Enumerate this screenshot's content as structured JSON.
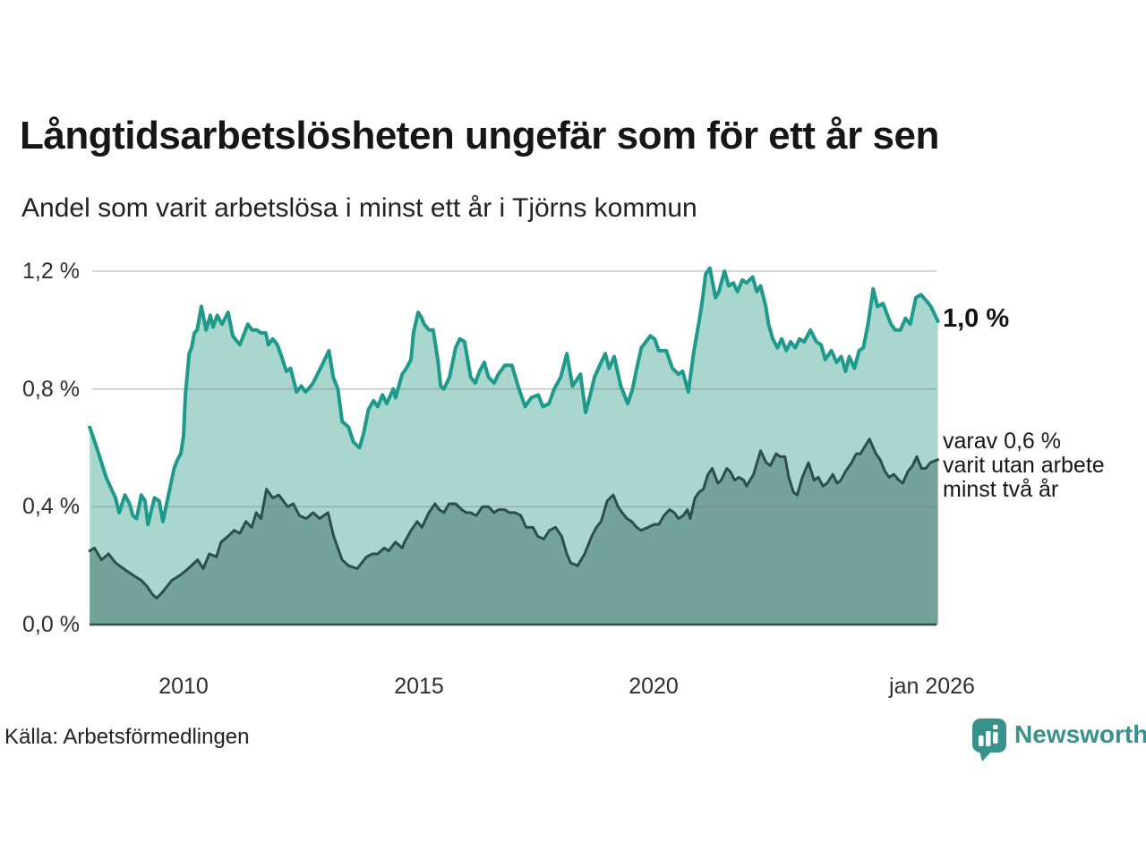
{
  "header": {
    "title": "Långtidsarbetslösheten ungefär som för ett år sen",
    "subtitle": "Andel som varit arbetslösa i minst ett år i Tjörns kommun"
  },
  "footer": {
    "source": "Källa: Arbetsförmedlingen",
    "brand": "Newsworthy",
    "brand_color": "#38918a"
  },
  "colors": {
    "line_1yr": "#1d9a8b",
    "fill_1yr": "#a9d7ce",
    "line_2yr": "#2e4f48",
    "fill_2yr": "#74a39a",
    "gridline": "#cccccc",
    "text": "#1a1a1a"
  },
  "chart_data": {
    "type": "area",
    "title": "Långtidsarbetslösheten ungefär som för ett år sen",
    "subtitle": "Andel som varit arbetslösa i minst ett år i Tjörns kommun",
    "x_unit": "decimal_year",
    "ylim": [
      0,
      1.2
    ],
    "xlim": [
      2008.0,
      2026.1
    ],
    "grid": true,
    "yticks": [
      {
        "value": 1.2,
        "label": "1,2 %"
      },
      {
        "value": 0.8,
        "label": "0,8 %"
      },
      {
        "value": 0.4,
        "label": "0,4 %"
      },
      {
        "value": 0.0,
        "label": "0,0 %"
      }
    ],
    "xticks": [
      {
        "year": 2010,
        "label": "2010"
      },
      {
        "year": 2015,
        "label": "2015"
      },
      {
        "year": 2020,
        "label": "2020"
      },
      {
        "year": 2026.0,
        "label": "jan 2026"
      }
    ],
    "end_labels": {
      "primary": "1,0 %",
      "secondary_lines": [
        "varav 0,6 %",
        "varit utan arbete",
        "minst två år"
      ]
    },
    "series": [
      {
        "id": "1yr",
        "name": "Andel arbetslösa minst ett år",
        "color": "#1d9a8b",
        "fill": "#a9d7ce",
        "last_value_label": "1,0 %",
        "x": [
          2008.0,
          2008.15,
          2008.35,
          2008.55,
          2008.63,
          2008.75,
          2008.85,
          2008.92,
          2009.0,
          2009.1,
          2009.18,
          2009.24,
          2009.38,
          2009.48,
          2009.56,
          2009.68,
          2009.8,
          2009.87,
          2009.94,
          2010.0,
          2010.04,
          2010.08,
          2010.12,
          2010.17,
          2010.23,
          2010.29,
          2010.38,
          2010.48,
          2010.57,
          2010.63,
          2010.72,
          2010.82,
          2010.95,
          2011.05,
          2011.2,
          2011.37,
          2011.46,
          2011.56,
          2011.65,
          2011.75,
          2011.81,
          2011.9,
          2012.0,
          2012.09,
          2012.19,
          2012.28,
          2012.41,
          2012.51,
          2012.6,
          2012.66,
          2012.76,
          2012.95,
          2013.1,
          2013.19,
          2013.29,
          2013.38,
          2013.52,
          2013.62,
          2013.75,
          2013.84,
          2013.94,
          2014.05,
          2014.14,
          2014.24,
          2014.33,
          2014.47,
          2014.52,
          2014.66,
          2014.75,
          2014.85,
          2014.9,
          2015.0,
          2015.08,
          2015.13,
          2015.23,
          2015.32,
          2015.42,
          2015.48,
          2015.55,
          2015.67,
          2015.8,
          2015.89,
          2015.99,
          2016.12,
          2016.22,
          2016.31,
          2016.41,
          2016.5,
          2016.62,
          2016.71,
          2016.85,
          2017.0,
          2017.13,
          2017.28,
          2017.41,
          2017.56,
          2017.66,
          2017.79,
          2017.9,
          2018.04,
          2018.17,
          2018.29,
          2018.46,
          2018.57,
          2018.67,
          2018.76,
          2018.9,
          2018.99,
          2019.07,
          2019.18,
          2019.32,
          2019.47,
          2019.57,
          2019.66,
          2019.76,
          2019.95,
          2020.04,
          2020.13,
          2020.29,
          2020.42,
          2020.55,
          2020.64,
          2020.76,
          2020.87,
          2021.0,
          2021.05,
          2021.13,
          2021.22,
          2021.34,
          2021.41,
          2021.53,
          2021.62,
          2021.72,
          2021.81,
          2021.91,
          2022.0,
          2022.13,
          2022.22,
          2022.3,
          2022.41,
          2022.47,
          2022.56,
          2022.66,
          2022.75,
          2022.85,
          2022.94,
          2023.04,
          2023.13,
          2023.23,
          2023.36,
          2023.49,
          2023.59,
          2023.68,
          2023.81,
          2023.92,
          2024.02,
          2024.11,
          2024.19,
          2024.3,
          2024.4,
          2024.49,
          2024.59,
          2024.7,
          2024.79,
          2024.91,
          2024.98,
          2025.08,
          2025.17,
          2025.28,
          2025.39,
          2025.49,
          2025.61,
          2025.72,
          2025.83,
          2025.93,
          2026.08
        ],
        "values": [
          0.67,
          0.6,
          0.5,
          0.43,
          0.38,
          0.44,
          0.41,
          0.37,
          0.36,
          0.44,
          0.42,
          0.34,
          0.43,
          0.42,
          0.35,
          0.44,
          0.53,
          0.56,
          0.58,
          0.64,
          0.78,
          0.85,
          0.92,
          0.94,
          0.99,
          1.0,
          1.08,
          1.0,
          1.05,
          1.01,
          1.05,
          1.02,
          1.06,
          0.98,
          0.95,
          1.02,
          1.0,
          1.0,
          0.99,
          0.99,
          0.95,
          0.97,
          0.95,
          0.91,
          0.86,
          0.87,
          0.79,
          0.81,
          0.79,
          0.8,
          0.82,
          0.88,
          0.93,
          0.84,
          0.8,
          0.69,
          0.67,
          0.62,
          0.6,
          0.65,
          0.73,
          0.76,
          0.74,
          0.78,
          0.75,
          0.8,
          0.77,
          0.85,
          0.87,
          0.9,
          0.99,
          1.06,
          1.04,
          1.02,
          1.0,
          1.0,
          0.9,
          0.81,
          0.8,
          0.84,
          0.94,
          0.97,
          0.96,
          0.84,
          0.82,
          0.86,
          0.89,
          0.84,
          0.82,
          0.85,
          0.88,
          0.88,
          0.81,
          0.74,
          0.77,
          0.78,
          0.74,
          0.75,
          0.8,
          0.84,
          0.92,
          0.81,
          0.85,
          0.72,
          0.78,
          0.84,
          0.89,
          0.92,
          0.87,
          0.91,
          0.81,
          0.75,
          0.8,
          0.87,
          0.94,
          0.98,
          0.97,
          0.93,
          0.93,
          0.87,
          0.85,
          0.86,
          0.79,
          0.92,
          1.04,
          1.09,
          1.19,
          1.21,
          1.11,
          1.13,
          1.2,
          1.15,
          1.16,
          1.13,
          1.17,
          1.16,
          1.18,
          1.13,
          1.15,
          1.08,
          1.02,
          0.97,
          0.94,
          0.97,
          0.93,
          0.96,
          0.94,
          0.97,
          0.96,
          1.0,
          0.96,
          0.95,
          0.9,
          0.93,
          0.89,
          0.91,
          0.86,
          0.91,
          0.87,
          0.93,
          0.94,
          1.02,
          1.14,
          1.08,
          1.09,
          1.06,
          1.02,
          1.0,
          1.0,
          1.04,
          1.02,
          1.11,
          1.12,
          1.1,
          1.08,
          1.03
        ]
      },
      {
        "id": "2yr",
        "name": "Varav utan arbete minst två år",
        "color": "#2e4f48",
        "fill": "#74a39a",
        "last_value_label": "0,6 %",
        "x": [
          2008.0,
          2008.1,
          2008.25,
          2008.4,
          2008.55,
          2008.72,
          2008.9,
          2009.1,
          2009.22,
          2009.35,
          2009.43,
          2009.55,
          2009.75,
          2009.95,
          2010.1,
          2010.3,
          2010.42,
          2010.55,
          2010.7,
          2010.8,
          2010.95,
          2011.08,
          2011.2,
          2011.33,
          2011.45,
          2011.55,
          2011.65,
          2011.77,
          2011.9,
          2012.03,
          2012.22,
          2012.34,
          2012.47,
          2012.62,
          2012.76,
          2012.9,
          2013.08,
          2013.2,
          2013.29,
          2013.38,
          2013.52,
          2013.7,
          2013.9,
          2014.03,
          2014.14,
          2014.28,
          2014.37,
          2014.52,
          2014.66,
          2014.71,
          2014.85,
          2014.98,
          2015.08,
          2015.23,
          2015.36,
          2015.45,
          2015.55,
          2015.66,
          2015.8,
          2015.93,
          2016.03,
          2016.12,
          2016.24,
          2016.37,
          2016.5,
          2016.62,
          2016.71,
          2016.85,
          2016.94,
          2017.07,
          2017.19,
          2017.3,
          2017.45,
          2017.55,
          2017.68,
          2017.8,
          2017.93,
          2018.06,
          2018.17,
          2018.25,
          2018.4,
          2018.55,
          2018.7,
          2018.8,
          2018.9,
          2019.03,
          2019.16,
          2019.26,
          2019.35,
          2019.45,
          2019.55,
          2019.66,
          2019.75,
          2019.9,
          2020.03,
          2020.13,
          2020.24,
          2020.36,
          2020.46,
          2020.55,
          2020.65,
          2020.74,
          2020.8,
          2020.9,
          2020.99,
          2021.08,
          2021.18,
          2021.27,
          2021.39,
          2021.46,
          2021.58,
          2021.65,
          2021.75,
          2021.84,
          2021.94,
          2022.0,
          2022.15,
          2022.3,
          2022.42,
          2022.51,
          2022.63,
          2022.72,
          2022.82,
          2022.9,
          2023.0,
          2023.08,
          2023.19,
          2023.32,
          2023.44,
          2023.53,
          2023.63,
          2023.72,
          2023.84,
          2023.93,
          2024.01,
          2024.11,
          2024.24,
          2024.34,
          2024.43,
          2024.62,
          2024.76,
          2024.85,
          2024.95,
          2025.04,
          2025.14,
          2025.25,
          2025.33,
          2025.44,
          2025.54,
          2025.63,
          2025.73,
          2025.82,
          2025.92,
          2026.08
        ],
        "values": [
          0.25,
          0.26,
          0.22,
          0.24,
          0.21,
          0.19,
          0.17,
          0.15,
          0.13,
          0.1,
          0.09,
          0.11,
          0.15,
          0.17,
          0.19,
          0.22,
          0.19,
          0.24,
          0.23,
          0.28,
          0.3,
          0.32,
          0.31,
          0.35,
          0.33,
          0.38,
          0.36,
          0.46,
          0.43,
          0.44,
          0.4,
          0.41,
          0.37,
          0.36,
          0.38,
          0.36,
          0.38,
          0.3,
          0.26,
          0.22,
          0.2,
          0.19,
          0.23,
          0.24,
          0.24,
          0.26,
          0.25,
          0.28,
          0.26,
          0.28,
          0.32,
          0.35,
          0.33,
          0.38,
          0.41,
          0.39,
          0.38,
          0.41,
          0.41,
          0.39,
          0.38,
          0.38,
          0.37,
          0.4,
          0.4,
          0.38,
          0.39,
          0.39,
          0.38,
          0.38,
          0.37,
          0.33,
          0.33,
          0.3,
          0.29,
          0.32,
          0.33,
          0.3,
          0.24,
          0.21,
          0.2,
          0.24,
          0.3,
          0.33,
          0.35,
          0.42,
          0.44,
          0.4,
          0.38,
          0.36,
          0.35,
          0.33,
          0.32,
          0.33,
          0.34,
          0.34,
          0.37,
          0.39,
          0.38,
          0.36,
          0.37,
          0.39,
          0.36,
          0.43,
          0.45,
          0.46,
          0.51,
          0.53,
          0.48,
          0.49,
          0.53,
          0.52,
          0.49,
          0.5,
          0.49,
          0.47,
          0.51,
          0.59,
          0.55,
          0.54,
          0.58,
          0.57,
          0.57,
          0.5,
          0.45,
          0.44,
          0.5,
          0.55,
          0.49,
          0.5,
          0.47,
          0.48,
          0.51,
          0.48,
          0.49,
          0.52,
          0.55,
          0.58,
          0.58,
          0.63,
          0.58,
          0.56,
          0.52,
          0.5,
          0.51,
          0.49,
          0.48,
          0.52,
          0.54,
          0.57,
          0.53,
          0.53,
          0.55,
          0.56
        ]
      }
    ]
  }
}
